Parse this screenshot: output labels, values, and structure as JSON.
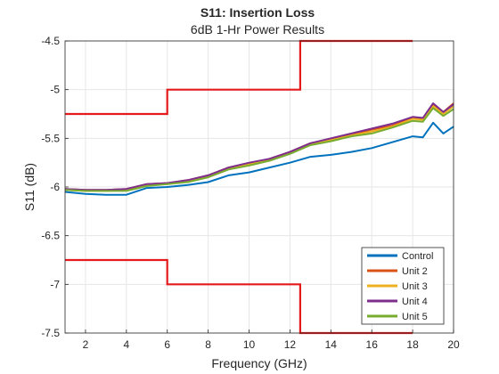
{
  "chart_data": {
    "type": "line",
    "title": "S11: Insertion Loss",
    "subtitle": "6dB 1-Hr Power Results",
    "xlabel": "Frequency (GHz)",
    "ylabel": "S11 (dB)",
    "xlim": [
      1,
      20
    ],
    "ylim": [
      -7.5,
      -4.5
    ],
    "xticks": [
      2,
      4,
      6,
      8,
      10,
      12,
      14,
      16,
      18,
      20
    ],
    "yticks": [
      -4.5,
      -5,
      -5.5,
      -6,
      -6.5,
      -7,
      -7.5
    ],
    "grid": true,
    "legend_position": "bottom-right",
    "limit_lines": [
      {
        "color": "#e41a1c",
        "x": [
          1,
          6,
          6,
          12.5,
          12.5,
          18
        ],
        "y": [
          -5.25,
          -5.25,
          -5.0,
          -5.0,
          -4.5,
          -4.5
        ]
      },
      {
        "color": "#e41a1c",
        "x": [
          1,
          6,
          6,
          12.5,
          12.5,
          18
        ],
        "y": [
          -6.75,
          -6.75,
          -7.0,
          -7.0,
          -7.5,
          -7.5
        ]
      }
    ],
    "series": [
      {
        "name": "Control",
        "color": "#0072BD",
        "x": [
          1,
          2,
          3,
          4,
          5,
          6,
          7,
          8,
          9,
          10,
          11,
          12,
          13,
          14,
          15,
          16,
          17,
          18,
          18.5,
          19,
          19.5,
          20
        ],
        "y": [
          -6.05,
          -6.07,
          -6.08,
          -6.08,
          -6.01,
          -6.0,
          -5.98,
          -5.95,
          -5.88,
          -5.85,
          -5.8,
          -5.75,
          -5.69,
          -5.67,
          -5.64,
          -5.6,
          -5.54,
          -5.48,
          -5.49,
          -5.34,
          -5.45,
          -5.38
        ]
      },
      {
        "name": "Unit 2",
        "color": "#D95319",
        "x": [
          1,
          2,
          3,
          4,
          5,
          6,
          7,
          8,
          9,
          10,
          11,
          12,
          13,
          14,
          15,
          16,
          17,
          18,
          18.5,
          19,
          19.5,
          20
        ],
        "y": [
          -6.02,
          -6.03,
          -6.03,
          -6.02,
          -5.97,
          -5.96,
          -5.93,
          -5.88,
          -5.8,
          -5.76,
          -5.71,
          -5.64,
          -5.55,
          -5.51,
          -5.46,
          -5.41,
          -5.37,
          -5.29,
          -5.3,
          -5.15,
          -5.23,
          -5.14
        ]
      },
      {
        "name": "Unit 3",
        "color": "#EDB120",
        "x": [
          1,
          2,
          3,
          4,
          5,
          6,
          7,
          8,
          9,
          10,
          11,
          12,
          13,
          14,
          15,
          16,
          17,
          18,
          18.5,
          19,
          19.5,
          20
        ],
        "y": [
          -6.03,
          -6.04,
          -6.04,
          -6.03,
          -5.98,
          -5.97,
          -5.94,
          -5.89,
          -5.81,
          -5.77,
          -5.72,
          -5.65,
          -5.56,
          -5.52,
          -5.47,
          -5.43,
          -5.38,
          -5.3,
          -5.31,
          -5.17,
          -5.25,
          -5.17
        ]
      },
      {
        "name": "Unit 4",
        "color": "#7E2F8E",
        "x": [
          1,
          2,
          3,
          4,
          5,
          6,
          7,
          8,
          9,
          10,
          11,
          12,
          13,
          14,
          15,
          16,
          17,
          18,
          18.5,
          19,
          19.5,
          20
        ],
        "y": [
          -6.02,
          -6.03,
          -6.03,
          -6.02,
          -5.97,
          -5.96,
          -5.93,
          -5.88,
          -5.8,
          -5.75,
          -5.71,
          -5.64,
          -5.55,
          -5.5,
          -5.45,
          -5.4,
          -5.35,
          -5.28,
          -5.29,
          -5.14,
          -5.23,
          -5.15
        ]
      },
      {
        "name": "Unit 5",
        "color": "#77AC30",
        "x": [
          1,
          2,
          3,
          4,
          5,
          6,
          7,
          8,
          9,
          10,
          11,
          12,
          13,
          14,
          15,
          16,
          17,
          18,
          18.5,
          19,
          19.5,
          20
        ],
        "y": [
          -6.03,
          -6.04,
          -6.04,
          -6.04,
          -5.99,
          -5.97,
          -5.95,
          -5.9,
          -5.82,
          -5.78,
          -5.73,
          -5.66,
          -5.57,
          -5.53,
          -5.48,
          -5.45,
          -5.39,
          -5.32,
          -5.33,
          -5.19,
          -5.27,
          -5.2
        ]
      }
    ]
  }
}
